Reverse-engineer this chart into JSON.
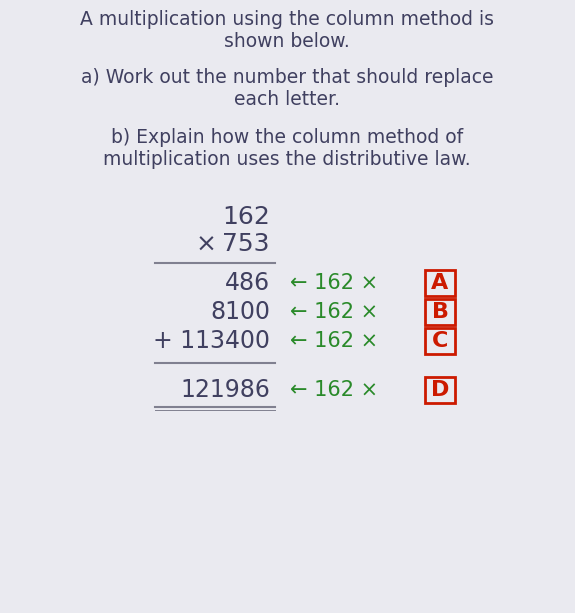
{
  "bg_color": "#eaeaf0",
  "title_line1": "A multiplication using the column method is",
  "title_line2": "shown below.",
  "part_a_line1": "a) Work out the number that should replace",
  "part_a_line2": "each letter.",
  "part_b_line1": "b) Explain how the column method of",
  "part_b_line2": "multiplication uses the distributive law.",
  "num1": "162",
  "num2": "× 753",
  "text_color": "#404060",
  "green_color": "#2a8a2a",
  "red_color": "#cc1a00",
  "main_font_size": 13.5,
  "math_font_size": 17,
  "letter_font_size": 16,
  "results": [
    "486",
    "8100",
    "+ 113400",
    "121986"
  ],
  "letters": [
    "A",
    "B",
    "C",
    "D"
  ]
}
